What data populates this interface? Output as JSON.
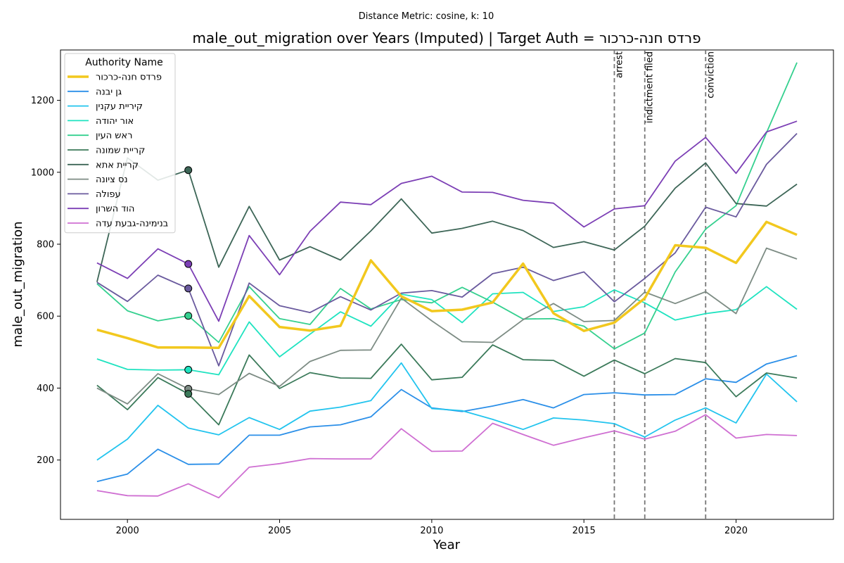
{
  "chart_data": {
    "type": "line",
    "subtitle": "Distance Metric: cosine, k: 10",
    "title": "male_out_migration over Years (Imputed) | Target Auth = פרדס חנה-כרכור",
    "xlabel": "Year",
    "ylabel": "male_out_migration",
    "xlim": [
      1997.8,
      2023.2
    ],
    "ylim": [
      35,
      1340
    ],
    "xticks": [
      2000,
      2005,
      2010,
      2015,
      2020
    ],
    "yticks": [
      200,
      400,
      600,
      800,
      1000,
      1200
    ],
    "grid": false,
    "legend_title": "Authority Name",
    "legend_position": "top-left",
    "x": [
      1999,
      2000,
      2001,
      2002,
      2003,
      2004,
      2005,
      2006,
      2007,
      2008,
      2009,
      2010,
      2011,
      2012,
      2013,
      2014,
      2015,
      2016,
      2017,
      2018,
      2019,
      2020,
      2021,
      2022
    ],
    "series": [
      {
        "name": "פרדס חנה-כרכור",
        "color": "#f2c81e",
        "width": 3.5,
        "target": true,
        "values": [
          562,
          539,
          513,
          513,
          512,
          656,
          570,
          560,
          573,
          755,
          655,
          614,
          618,
          638,
          746,
          608,
          559,
          582,
          650,
          797,
          790,
          748,
          862,
          826
        ]
      },
      {
        "name": "גן יבנה",
        "color": "#2b8fe8",
        "width": 1.8,
        "values": [
          140,
          161,
          230,
          188,
          189,
          269,
          269,
          292,
          298,
          320,
          396,
          345,
          335,
          350,
          368,
          345,
          382,
          387,
          381,
          382,
          426,
          416,
          467,
          490
        ]
      },
      {
        "name": "קיריית עקנין",
        "color": "#22c4ee",
        "width": 1.8,
        "values": [
          200,
          258,
          352,
          289,
          270,
          318,
          285,
          336,
          347,
          365,
          470,
          343,
          337,
          313,
          285,
          317,
          311,
          301,
          264,
          311,
          345,
          303,
          439,
          362
        ]
      },
      {
        "name": "אור יהודה",
        "color": "#1fe3c0",
        "width": 1.8,
        "values": [
          481,
          452,
          450,
          451,
          437,
          584,
          487,
          550,
          612,
          572,
          661,
          646,
          582,
          662,
          666,
          613,
          626,
          673,
          637,
          589,
          607,
          618,
          682,
          619
        ]
      },
      {
        "name": "ראש העין",
        "color": "#35d08f",
        "width": 1.8,
        "values": [
          690,
          615,
          587,
          601,
          527,
          682,
          593,
          577,
          677,
          620,
          646,
          637,
          680,
          639,
          592,
          593,
          572,
          509,
          553,
          723,
          842,
          907,
          1110,
          1305
        ]
      },
      {
        "name": "קריית שמונה",
        "color": "#3b7a5a",
        "width": 1.8,
        "values": [
          408,
          340,
          429,
          384,
          298,
          492,
          399,
          443,
          428,
          427,
          522,
          423,
          430,
          520,
          479,
          477,
          433,
          478,
          440,
          482,
          471,
          376,
          442,
          428
        ]
      },
      {
        "name": "קריית אתא",
        "color": "#3d6657",
        "width": 1.8,
        "values": [
          695,
          1040,
          978,
          1006,
          736,
          905,
          756,
          793,
          756,
          837,
          926,
          831,
          844,
          864,
          838,
          791,
          807,
          784,
          850,
          956,
          1026,
          913,
          906,
          967
        ]
      },
      {
        "name": "נס ציונה",
        "color": "#7d8c84",
        "width": 1.8,
        "values": [
          400,
          356,
          440,
          398,
          382,
          441,
          405,
          474,
          505,
          506,
          650,
          587,
          529,
          527,
          590,
          635,
          585,
          588,
          667,
          635,
          668,
          607,
          789,
          759
        ]
      },
      {
        "name": "עפולה",
        "color": "#6a5a9e",
        "width": 1.8,
        "values": [
          694,
          641,
          714,
          677,
          462,
          692,
          629,
          610,
          654,
          617,
          664,
          671,
          653,
          718,
          736,
          699,
          723,
          640,
          705,
          776,
          903,
          876,
          1022,
          1108
        ]
      },
      {
        "name": "הוד השרון",
        "color": "#7c3fb5",
        "width": 1.8,
        "values": [
          748,
          705,
          787,
          745,
          586,
          824,
          715,
          836,
          917,
          910,
          969,
          989,
          945,
          944,
          922,
          914,
          848,
          898,
          907,
          1031,
          1097,
          997,
          1112,
          1142
        ]
      },
      {
        "name": "בנימינה-גבעת עדה",
        "color": "#cf6fd2",
        "width": 1.8,
        "values": [
          115,
          101,
          100,
          134,
          95,
          180,
          190,
          204,
          203,
          203,
          287,
          224,
          225,
          302,
          271,
          241,
          262,
          281,
          258,
          280,
          326,
          261,
          271,
          268
        ]
      }
    ],
    "markers": [
      {
        "x": 2002,
        "y": 1006,
        "color": "#3d6657"
      },
      {
        "x": 2002,
        "y": 745,
        "color": "#7c3fb5"
      },
      {
        "x": 2002,
        "y": 677,
        "color": "#6a5a9e"
      },
      {
        "x": 2002,
        "y": 601,
        "color": "#35d08f"
      },
      {
        "x": 2002,
        "y": 451,
        "color": "#1fe3c0"
      },
      {
        "x": 2002,
        "y": 398,
        "color": "#7d8c84"
      },
      {
        "x": 2002,
        "y": 384,
        "color": "#3b7a5a"
      }
    ],
    "events": [
      {
        "x": 2016,
        "label": "arrest"
      },
      {
        "x": 2017,
        "label": "indictment filed"
      },
      {
        "x": 2019,
        "label": "conviction"
      }
    ]
  }
}
